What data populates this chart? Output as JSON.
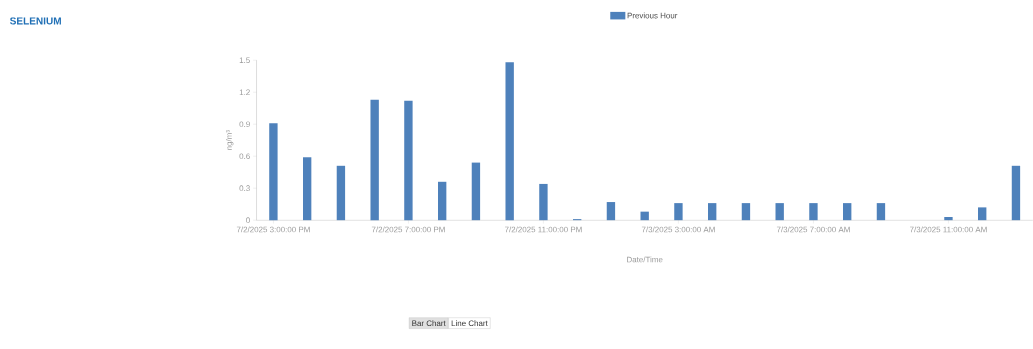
{
  "chart_data": {
    "type": "bar",
    "title": "SELENIUM",
    "xlabel": "Date/Time",
    "ylabel": "ng/m³",
    "categories": [
      "7/2/2025 3:00:00 PM",
      null,
      null,
      null,
      "7/2/2025 7:00:00 PM",
      null,
      null,
      null,
      "7/2/2025 11:00:00 PM",
      null,
      null,
      null,
      "7/3/2025 3:00:00 AM",
      null,
      null,
      null,
      "7/3/2025 7:00:00 AM",
      null,
      null,
      null,
      "7/3/2025 11:00:00 AM",
      null,
      null
    ],
    "series": [
      {
        "name": "Previous Hour",
        "color": "#4e81bb",
        "values": [
          0.91,
          0.59,
          0.51,
          1.13,
          1.12,
          0.36,
          0.54,
          1.48,
          0.34,
          0.01,
          0.17,
          0.08,
          0.16,
          0.16,
          0.16,
          0.16,
          0.16,
          0.16,
          0.16,
          null,
          0.03,
          0.12,
          0.51
        ]
      }
    ],
    "ylim": [
      0,
      1.5
    ],
    "yticks": [
      0,
      0.3,
      0.6,
      0.9,
      1.2,
      1.5
    ],
    "legend": "top",
    "annotations": [
      "Bar Chart",
      "Line Chart"
    ]
  }
}
